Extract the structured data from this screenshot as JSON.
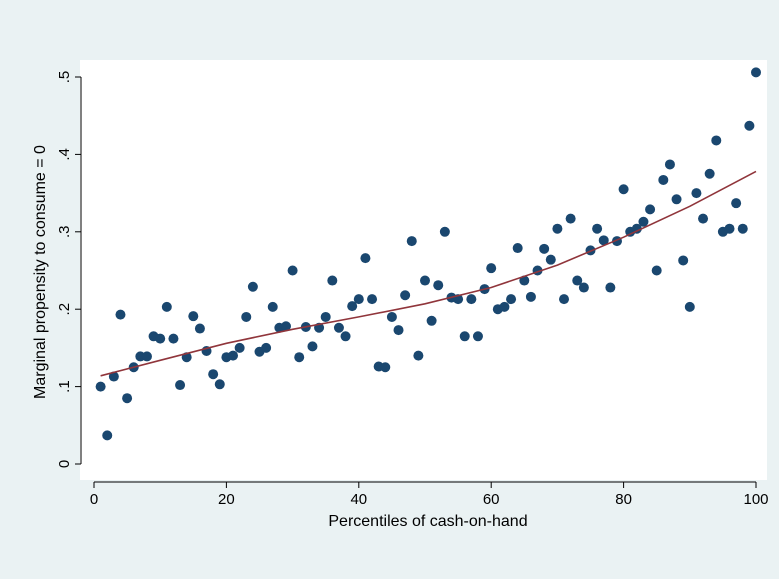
{
  "chart_data": {
    "type": "scatter",
    "title": "",
    "xlabel": "Percentiles of cash-on-hand",
    "ylabel": "Marginal propensity to consume = 0",
    "xlim": [
      0,
      100
    ],
    "ylim": [
      0,
      0.5
    ],
    "xticks": [
      0,
      20,
      40,
      60,
      80,
      100
    ],
    "yticks": [
      0,
      0.1,
      0.2,
      0.3,
      0.4,
      0.5
    ],
    "xtick_labels": [
      "0",
      "20",
      "40",
      "60",
      "80",
      "100"
    ],
    "ytick_labels": [
      "0",
      ".1",
      ".2",
      ".3",
      ".4",
      ".5"
    ],
    "grid": false,
    "legend": "none",
    "colors": {
      "points": "#1a476f",
      "fit_line": "#90353b",
      "plot_bg": "#ffffff",
      "outer_bg": "#eaf2f3"
    },
    "series": [
      {
        "type": "scatter",
        "x": [
          1,
          2,
          3,
          4,
          5,
          6,
          7,
          8,
          9,
          10,
          11,
          12,
          13,
          14,
          15,
          16,
          17,
          18,
          19,
          20,
          21,
          22,
          23,
          24,
          25,
          26,
          27,
          28,
          29,
          30,
          31,
          32,
          33,
          34,
          35,
          36,
          37,
          38,
          39,
          40,
          41,
          42,
          43,
          44,
          45,
          46,
          47,
          48,
          49,
          50,
          51,
          52,
          53,
          54,
          55,
          56,
          57,
          58,
          59,
          60,
          61,
          62,
          63,
          64,
          65,
          66,
          67,
          68,
          69,
          70,
          71,
          72,
          73,
          74,
          75,
          76,
          77,
          78,
          79,
          80,
          81,
          82,
          83,
          84,
          85,
          86,
          87,
          88,
          89,
          90,
          91,
          92,
          93,
          94,
          95,
          96,
          97,
          98,
          99,
          100
        ],
        "y": [
          0.1,
          0.037,
          0.113,
          0.193,
          0.085,
          0.125,
          0.139,
          0.139,
          0.165,
          0.162,
          0.203,
          0.162,
          0.102,
          0.138,
          0.191,
          0.175,
          0.146,
          0.116,
          0.103,
          0.138,
          0.14,
          0.15,
          0.19,
          0.229,
          0.145,
          0.15,
          0.203,
          0.176,
          0.178,
          0.25,
          0.138,
          0.177,
          0.152,
          0.176,
          0.19,
          0.237,
          0.176,
          0.165,
          0.204,
          0.213,
          0.266,
          0.213,
          0.126,
          0.125,
          0.19,
          0.173,
          0.218,
          0.288,
          0.14,
          0.237,
          0.185,
          0.231,
          0.3,
          0.215,
          0.213,
          0.165,
          0.213,
          0.165,
          0.226,
          0.253,
          0.2,
          0.203,
          0.213,
          0.279,
          0.237,
          0.216,
          0.25,
          0.278,
          0.264,
          0.304,
          0.213,
          0.317,
          0.237,
          0.228,
          0.276,
          0.304,
          0.289,
          0.228,
          0.288,
          0.355,
          0.3,
          0.304,
          0.313,
          0.329,
          0.25,
          0.367,
          0.387,
          0.342,
          0.263,
          0.203,
          0.35,
          0.317,
          0.375,
          0.418,
          0.3,
          0.304,
          0.337,
          0.304,
          0.437,
          0.506
        ]
      },
      {
        "type": "line",
        "x": [
          1,
          10,
          20,
          30,
          40,
          50,
          60,
          70,
          80,
          90,
          100
        ],
        "y": [
          0.114,
          0.134,
          0.156,
          0.174,
          0.19,
          0.207,
          0.228,
          0.257,
          0.293,
          0.333,
          0.378
        ]
      }
    ]
  }
}
